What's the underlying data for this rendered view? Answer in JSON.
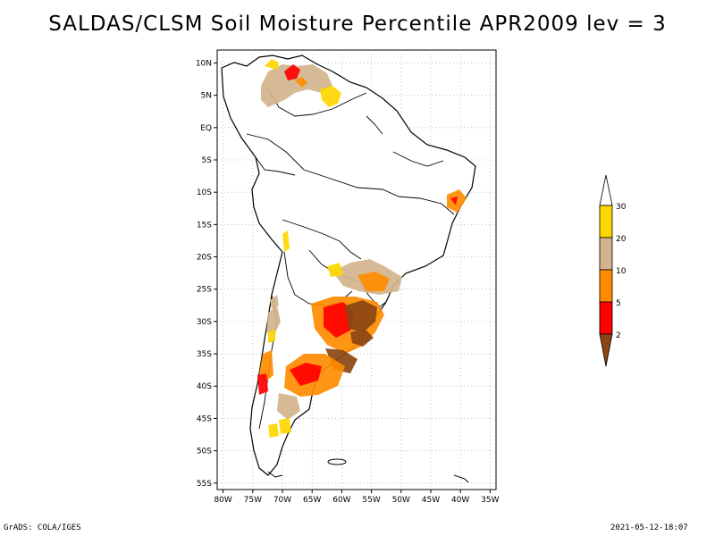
{
  "title": "SALDAS/CLSM Soil Moisture Percentile APR2009 lev = 3",
  "map": {
    "lat_ticks": [
      "10N",
      "5N",
      "EQ",
      "5S",
      "10S",
      "15S",
      "20S",
      "25S",
      "30S",
      "35S",
      "40S",
      "45S",
      "50S",
      "55S"
    ],
    "lon_ticks": [
      "80W",
      "75W",
      "70W",
      "65W",
      "60W",
      "55W",
      "50W",
      "45W",
      "40W",
      "35W"
    ],
    "lat_range": [
      -56,
      12
    ],
    "lon_range": [
      -81,
      -34
    ],
    "grid": true
  },
  "legend": {
    "labels": [
      "2",
      "5",
      "10",
      "20",
      "30"
    ],
    "colors": [
      "#8b4513",
      "#ff0000",
      "#ff8c00",
      "#d2b48c",
      "#ffd700"
    ]
  },
  "footer": {
    "left": "GrADS: COLA/IGES",
    "right": "2021-05-12-18:07"
  }
}
